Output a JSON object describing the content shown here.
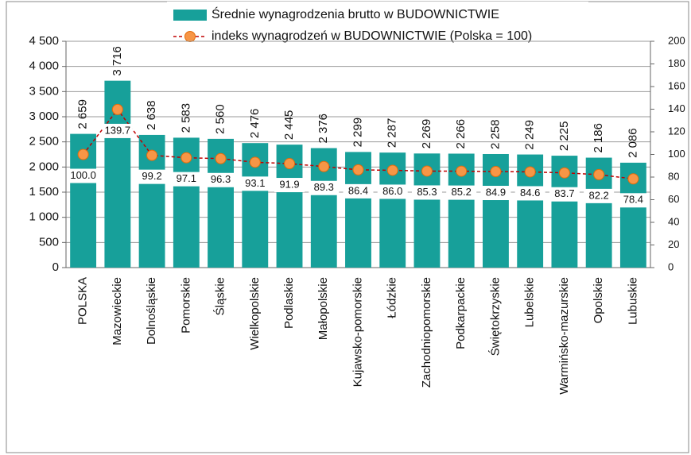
{
  "chart_data": {
    "type": "bar",
    "categories": [
      "POLSKA",
      "Mazowieckie",
      "Dolnośląskie",
      "Pomorskie",
      "Śląskie",
      "Wielkopolskie",
      "Podlaskie",
      "Małopolskie",
      "Kujawsko-pomorskie",
      "Łódzkie",
      "Zachodniopomorskie",
      "Podkarpackie",
      "Świętokrzyskie",
      "Lubelskie",
      "Warmińsko-mazurskie",
      "Opolskie",
      "Lubuskie"
    ],
    "series": [
      {
        "name": "Średnie wynagrodzenia brutto w BUDOWNICTWIE",
        "type": "bar",
        "color": "#17a09a",
        "values": [
          2659,
          3716,
          2638,
          2583,
          2560,
          2476,
          2445,
          2376,
          2299,
          2287,
          2269,
          2266,
          2258,
          2249,
          2225,
          2186,
          2086
        ],
        "value_labels": [
          "2 659",
          "3 716",
          "2 638",
          "2 583",
          "2 560",
          "2 476",
          "2 445",
          "2 376",
          "2 299",
          "2 287",
          "2 269",
          "2 266",
          "2 258",
          "2 249",
          "2 225",
          "2 186",
          "2 086"
        ]
      },
      {
        "name": "indeks wynagrodzeń w BUDOWNICTWIE (Polska = 100)",
        "type": "line",
        "axis": "y2",
        "color": "#c00000",
        "marker_color": "#f79646",
        "values": [
          100.0,
          139.7,
          99.2,
          97.1,
          96.3,
          93.1,
          91.9,
          89.3,
          86.4,
          86.0,
          85.3,
          85.2,
          84.9,
          84.6,
          83.7,
          82.2,
          78.4
        ],
        "value_labels": [
          "100.0",
          "139.7",
          "99.2",
          "97.1",
          "96.3",
          "93.1",
          "91.9",
          "89.3",
          "86.4",
          "86.0",
          "85.3",
          "85.2",
          "84.9",
          "84.6",
          "83.7",
          "82.2",
          "78.4"
        ]
      }
    ],
    "ylim": [
      0,
      4500
    ],
    "yticks": [
      0,
      500,
      {
        "value": 1000,
        "label": "1 000"
      },
      {
        "value": 1500,
        "label": "1 500"
      },
      {
        "value": 2000,
        "label": "2 000"
      },
      {
        "value": 2500,
        "label": "2 500"
      },
      {
        "value": 3000,
        "label": "3 000"
      },
      {
        "value": 3500,
        "label": "3 500"
      },
      {
        "value": 4000,
        "label": "4 000"
      },
      {
        "value": 4500,
        "label": "4 500"
      }
    ],
    "y2lim": [
      0,
      200
    ],
    "y2ticks": [
      0,
      20,
      40,
      60,
      80,
      100,
      120,
      140,
      160,
      180,
      200
    ],
    "grid": true,
    "legend": "top"
  }
}
